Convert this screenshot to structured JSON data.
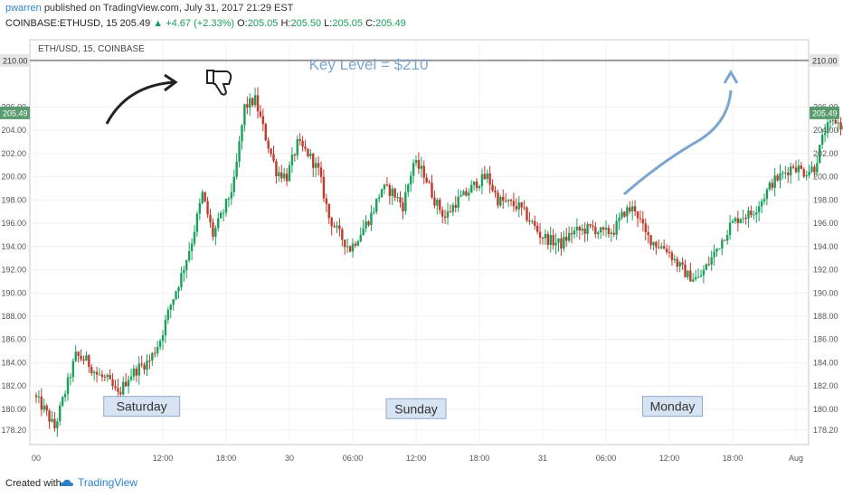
{
  "header": {
    "user": "pwarren",
    "published_text": "published on TradingView.com, July 31, 2017 21:29 EST",
    "symbol": "COINBASE:ETHUSD, 15",
    "last_price": "205.49",
    "change": "▲ +4.67 (+2.33%)",
    "open_label": "O:",
    "open": "205.05",
    "high_label": "H:",
    "high": "205.50",
    "low_label": "L:",
    "low": "205.05",
    "close_label": "C:",
    "close": "205.49"
  },
  "footer": {
    "created_with": "Created with",
    "brand": "TradingView"
  },
  "colors": {
    "up": "#19a05a",
    "down": "#c0392b",
    "annotation": "#7aa6d0",
    "price_tag": "#5a9c6f"
  },
  "chart_data": {
    "type": "candlestick",
    "title": "ETH/USD, 15, COINBASE",
    "ylim": [
      177.2,
      211
    ],
    "y_ticks": [
      "178.20",
      "180.00",
      "182.00",
      "184.00",
      "186.00",
      "188.00",
      "190.00",
      "192.00",
      "194.00",
      "196.00",
      "198.00",
      "200.00",
      "202.00",
      "204.00",
      "206.00",
      "210.00"
    ],
    "x_ticks": [
      {
        "label": "00",
        "hour": 0
      },
      {
        "label": "12:00",
        "hour": 12
      },
      {
        "label": "18:00",
        "hour": 18
      },
      {
        "label": "30",
        "hour": 24
      },
      {
        "label": "06:00",
        "hour": 30
      },
      {
        "label": "12:00",
        "hour": 36
      },
      {
        "label": "18:00",
        "hour": 42
      },
      {
        "label": "31",
        "hour": 48
      },
      {
        "label": "06:00",
        "hour": 54
      },
      {
        "label": "12:00",
        "hour": 60
      },
      {
        "label": "18:00",
        "hour": 66
      },
      {
        "label": "Aug",
        "hour": 72
      }
    ],
    "key_level": {
      "value": 210,
      "label": "210.00"
    },
    "last_price": {
      "value": 205.49,
      "label": "205.49"
    },
    "annotations": [
      {
        "text": "Key Level = $210",
        "hour": 31.5,
        "price": 209.2
      },
      {
        "text": "Saturday",
        "hour": 10.0,
        "price": 180.1
      },
      {
        "text": "Sunday",
        "hour": 36.0,
        "price": 179.9
      },
      {
        "text": "Monday",
        "hour": 60.3,
        "price": 180.1
      }
    ],
    "price_path": [
      [
        0,
        181.2
      ],
      [
        1,
        180.0
      ],
      [
        2,
        178.4
      ],
      [
        3,
        181.5
      ],
      [
        4,
        184.6
      ],
      [
        5,
        184.2
      ],
      [
        6,
        183.0
      ],
      [
        7,
        182.5
      ],
      [
        8,
        181.2
      ],
      [
        9,
        182.8
      ],
      [
        10,
        183.6
      ],
      [
        11,
        184.2
      ],
      [
        12,
        186.0
      ],
      [
        13,
        189.0
      ],
      [
        14,
        191.5
      ],
      [
        15,
        194.5
      ],
      [
        16,
        198.5
      ],
      [
        17,
        195.0
      ],
      [
        18,
        197.0
      ],
      [
        19,
        199.5
      ],
      [
        20,
        206.0
      ],
      [
        21,
        206.6
      ],
      [
        22,
        203.4
      ],
      [
        23,
        200.5
      ],
      [
        24,
        200.0
      ],
      [
        25,
        202.8
      ],
      [
        26,
        202.0
      ],
      [
        27,
        200.5
      ],
      [
        28,
        196.5
      ],
      [
        29,
        195.0
      ],
      [
        30,
        193.8
      ],
      [
        31,
        195.2
      ],
      [
        32,
        196.7
      ],
      [
        33,
        199.0
      ],
      [
        34,
        198.7
      ],
      [
        35,
        197.5
      ],
      [
        36,
        201.2
      ],
      [
        37,
        200.3
      ],
      [
        38,
        198.0
      ],
      [
        39,
        196.5
      ],
      [
        40,
        197.8
      ],
      [
        41,
        198.5
      ],
      [
        42,
        199.5
      ],
      [
        43,
        200.0
      ],
      [
        44,
        198.0
      ],
      [
        45,
        197.7
      ],
      [
        46,
        197.4
      ],
      [
        47,
        196.3
      ],
      [
        48,
        195.0
      ],
      [
        49,
        194.5
      ],
      [
        50,
        194.2
      ],
      [
        51,
        195.2
      ],
      [
        52,
        195.4
      ],
      [
        53,
        195.6
      ],
      [
        54,
        195.1
      ],
      [
        55,
        195.4
      ],
      [
        56,
        197.0
      ],
      [
        57,
        197.3
      ],
      [
        58,
        195.0
      ],
      [
        59,
        194.2
      ],
      [
        60,
        193.8
      ],
      [
        61,
        192.5
      ],
      [
        62,
        191.5
      ],
      [
        63,
        191.2
      ],
      [
        64,
        192.6
      ],
      [
        65,
        194.2
      ],
      [
        66,
        195.8
      ],
      [
        67,
        196.6
      ],
      [
        68,
        196.8
      ],
      [
        69,
        198.0
      ],
      [
        70,
        199.5
      ],
      [
        71,
        200.2
      ],
      [
        72,
        201.0
      ],
      [
        73,
        200.4
      ],
      [
        74,
        200.8
      ],
      [
        75,
        204.0
      ],
      [
        76,
        204.8
      ],
      [
        77,
        204.0
      ],
      [
        78,
        205.5
      ]
    ]
  }
}
